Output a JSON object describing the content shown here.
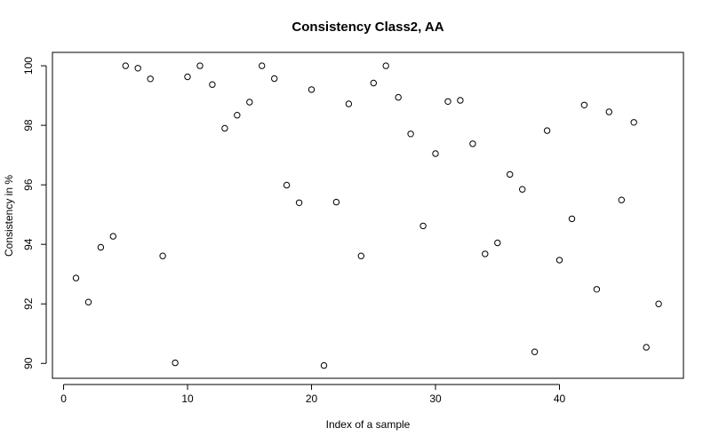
{
  "chart_data": {
    "type": "scatter",
    "title": "Consistency Class2, AA",
    "xlabel": "Index of a sample",
    "ylabel": "Consistency in %",
    "xlim": [
      -0.9,
      50.0
    ],
    "ylim": [
      89.5,
      100.45
    ],
    "xticks": [
      0,
      10,
      20,
      30,
      40
    ],
    "yticks": [
      90,
      92,
      94,
      96,
      98,
      100
    ],
    "grid": false,
    "legend": "none",
    "marker": "open-circle",
    "color": "#000000",
    "x": [
      1,
      2,
      3,
      4,
      5,
      6,
      7,
      8,
      9,
      10,
      11,
      12,
      13,
      14,
      15,
      16,
      17,
      18,
      19,
      20,
      21,
      22,
      23,
      24,
      25,
      26,
      27,
      28,
      29,
      30,
      31,
      32,
      33,
      34,
      35,
      36,
      37,
      38,
      39,
      40,
      41,
      42,
      43,
      44,
      45,
      46,
      47,
      48
    ],
    "y": [
      92.87,
      92.06,
      93.9,
      94.27,
      100.0,
      99.92,
      99.56,
      93.61,
      90.02,
      99.63,
      100.0,
      99.37,
      97.9,
      98.34,
      98.78,
      100.0,
      99.57,
      95.99,
      95.4,
      99.2,
      89.93,
      95.42,
      98.72,
      93.61,
      99.42,
      100.0,
      98.94,
      97.71,
      94.62,
      97.05,
      98.8,
      98.84,
      97.38,
      93.68,
      94.05,
      96.35,
      95.85,
      90.39,
      97.82,
      93.47,
      94.86,
      98.68,
      92.49,
      98.45,
      95.49,
      98.1,
      90.54,
      92.0
    ]
  }
}
